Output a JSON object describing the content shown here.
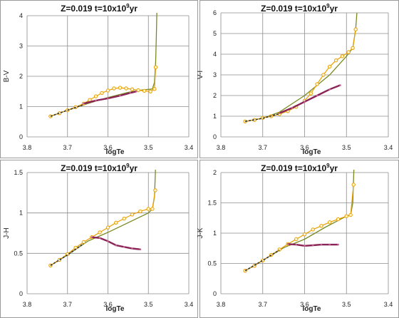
{
  "chart_data": [
    {
      "type": "line",
      "title": "Z=0.019 t=10x10^9yr",
      "xlabel": "logTe",
      "ylabel": "B-V",
      "x_reversed": true,
      "xlim": [
        3.8,
        3.4
      ],
      "ylim": [
        0,
        4
      ],
      "xticks": [
        "3.8",
        "3.7",
        "3.6",
        "3.5",
        "3.4"
      ],
      "yticks": [
        "0",
        "1",
        "2",
        "3",
        "4"
      ],
      "grid": true,
      "series": [
        {
          "color": "#7a8a22",
          "style": "solid",
          "points": [
            [
              3.742,
              0.68
            ],
            [
              3.7,
              0.88
            ],
            [
              3.65,
              1.1
            ],
            [
              3.6,
              1.3
            ],
            [
              3.55,
              1.47
            ],
            [
              3.515,
              1.55
            ],
            [
              3.49,
              1.58
            ],
            [
              3.485,
              1.8
            ],
            [
              3.482,
              2.5
            ],
            [
              3.48,
              3.5
            ],
            [
              3.479,
              4.2
            ]
          ]
        },
        {
          "color": "#e8a000",
          "style": "markers",
          "points": [
            [
              3.742,
              0.68
            ],
            [
              3.72,
              0.78
            ],
            [
              3.7,
              0.88
            ],
            [
              3.68,
              0.98
            ],
            [
              3.66,
              1.1
            ],
            [
              3.645,
              1.22
            ],
            [
              3.63,
              1.34
            ],
            [
              3.615,
              1.45
            ],
            [
              3.6,
              1.53
            ],
            [
              3.585,
              1.6
            ],
            [
              3.57,
              1.62
            ],
            [
              3.555,
              1.6
            ],
            [
              3.54,
              1.57
            ],
            [
              3.525,
              1.54
            ],
            [
              3.51,
              1.52
            ],
            [
              3.495,
              1.5
            ],
            [
              3.485,
              1.58
            ],
            [
              3.482,
              2.3
            ]
          ]
        },
        {
          "color": "#8a2456",
          "style": "thick",
          "points": [
            [
              3.66,
              1.1
            ],
            [
              3.63,
              1.2
            ],
            [
              3.6,
              1.27
            ],
            [
              3.57,
              1.36
            ],
            [
              3.545,
              1.45
            ],
            [
              3.53,
              1.5
            ]
          ]
        },
        {
          "color": "#333333",
          "style": "dashed",
          "points": [
            [
              3.742,
              0.68
            ],
            [
              3.7,
              0.88
            ],
            [
              3.66,
              1.06
            ]
          ]
        }
      ]
    },
    {
      "type": "line",
      "title": "Z=0.019 t=10x10^9yr",
      "xlabel": "logTe",
      "ylabel": "V-I",
      "x_reversed": true,
      "xlim": [
        3.8,
        3.4
      ],
      "ylim": [
        0,
        6
      ],
      "xticks": [
        "3.8",
        "3.7",
        "3.6",
        "3.5",
        "3.4"
      ],
      "yticks": [
        "0",
        "1",
        "2",
        "3",
        "4",
        "5",
        "6"
      ],
      "grid": true,
      "series": [
        {
          "color": "#7a8a22",
          "style": "solid",
          "points": [
            [
              3.742,
              0.75
            ],
            [
              3.7,
              0.9
            ],
            [
              3.66,
              1.2
            ],
            [
              3.6,
              2.0
            ],
            [
              3.54,
              3.0
            ],
            [
              3.5,
              3.9
            ],
            [
              3.485,
              4.3
            ],
            [
              3.478,
              5.2
            ],
            [
              3.475,
              6.0
            ]
          ]
        },
        {
          "color": "#e8a000",
          "style": "markers",
          "points": [
            [
              3.742,
              0.75
            ],
            [
              3.72,
              0.82
            ],
            [
              3.7,
              0.92
            ],
            [
              3.68,
              1.0
            ],
            [
              3.66,
              1.1
            ],
            [
              3.64,
              1.25
            ],
            [
              3.62,
              1.45
            ],
            [
              3.6,
              1.75
            ],
            [
              3.585,
              2.1
            ],
            [
              3.57,
              2.55
            ],
            [
              3.555,
              3.0
            ],
            [
              3.54,
              3.4
            ],
            [
              3.525,
              3.7
            ],
            [
              3.51,
              3.9
            ],
            [
              3.495,
              4.1
            ],
            [
              3.485,
              4.3
            ],
            [
              3.478,
              5.2
            ]
          ]
        },
        {
          "color": "#8a2456",
          "style": "thick",
          "points": [
            [
              3.66,
              1.15
            ],
            [
              3.63,
              1.4
            ],
            [
              3.6,
              1.7
            ],
            [
              3.57,
              2.0
            ],
            [
              3.54,
              2.3
            ],
            [
              3.515,
              2.5
            ]
          ]
        },
        {
          "color": "#333333",
          "style": "dashed",
          "points": [
            [
              3.742,
              0.75
            ],
            [
              3.7,
              0.9
            ],
            [
              3.66,
              1.12
            ]
          ]
        }
      ]
    },
    {
      "type": "line",
      "title": "Z=0.019 t=10x10^9yr",
      "xlabel": "logTe",
      "ylabel": "J-H",
      "x_reversed": true,
      "xlim": [
        3.8,
        3.4
      ],
      "ylim": [
        0,
        1.5
      ],
      "xticks": [
        "3.8",
        "3.7",
        "3.6",
        "3.5",
        "3.4"
      ],
      "yticks": [
        "0",
        "0.5",
        "1",
        "1.5"
      ],
      "grid": true,
      "series": [
        {
          "color": "#7a8a22",
          "style": "solid",
          "points": [
            [
              3.742,
              0.35
            ],
            [
              3.7,
              0.48
            ],
            [
              3.65,
              0.65
            ],
            [
              3.6,
              0.76
            ],
            [
              3.55,
              0.88
            ],
            [
              3.5,
              1.0
            ],
            [
              3.49,
              1.05
            ],
            [
              3.485,
              1.2
            ],
            [
              3.482,
              1.6
            ]
          ]
        },
        {
          "color": "#e8a000",
          "style": "markers",
          "points": [
            [
              3.742,
              0.35
            ],
            [
              3.72,
              0.42
            ],
            [
              3.7,
              0.49
            ],
            [
              3.68,
              0.57
            ],
            [
              3.66,
              0.64
            ],
            [
              3.64,
              0.7
            ],
            [
              3.62,
              0.76
            ],
            [
              3.6,
              0.82
            ],
            [
              3.58,
              0.88
            ],
            [
              3.56,
              0.93
            ],
            [
              3.54,
              0.98
            ],
            [
              3.52,
              1.02
            ],
            [
              3.5,
              1.05
            ],
            [
              3.49,
              1.05
            ],
            [
              3.483,
              1.28
            ]
          ]
        },
        {
          "color": "#8a2456",
          "style": "thick",
          "points": [
            [
              3.64,
              0.7
            ],
            [
              3.62,
              0.69
            ],
            [
              3.6,
              0.65
            ],
            [
              3.58,
              0.6
            ],
            [
              3.56,
              0.58
            ],
            [
              3.54,
              0.56
            ],
            [
              3.52,
              0.55
            ]
          ]
        },
        {
          "color": "#333333",
          "style": "dashed",
          "points": [
            [
              3.742,
              0.35
            ],
            [
              3.7,
              0.48
            ],
            [
              3.66,
              0.62
            ]
          ]
        }
      ]
    },
    {
      "type": "line",
      "title": "Z=0.019 t=10x10^9yr",
      "xlabel": "logTe",
      "ylabel": "J-K",
      "x_reversed": true,
      "xlim": [
        3.8,
        3.4
      ],
      "ylim": [
        0,
        2
      ],
      "xticks": [
        "3.8",
        "3.7",
        "3.6",
        "3.5",
        "3.4"
      ],
      "yticks": [
        "0",
        "0.5",
        "1",
        "1.5",
        "2"
      ],
      "grid": true,
      "series": [
        {
          "color": "#7a8a22",
          "style": "solid",
          "points": [
            [
              3.742,
              0.38
            ],
            [
              3.7,
              0.55
            ],
            [
              3.65,
              0.76
            ],
            [
              3.6,
              0.9
            ],
            [
              3.55,
              1.1
            ],
            [
              3.5,
              1.28
            ],
            [
              3.49,
              1.3
            ],
            [
              3.485,
              1.5
            ],
            [
              3.482,
              2.1
            ]
          ]
        },
        {
          "color": "#e8a000",
          "style": "markers",
          "points": [
            [
              3.742,
              0.38
            ],
            [
              3.72,
              0.46
            ],
            [
              3.7,
              0.55
            ],
            [
              3.68,
              0.64
            ],
            [
              3.66,
              0.73
            ],
            [
              3.64,
              0.82
            ],
            [
              3.62,
              0.9
            ],
            [
              3.6,
              0.98
            ],
            [
              3.58,
              1.06
            ],
            [
              3.56,
              1.12
            ],
            [
              3.54,
              1.18
            ],
            [
              3.52,
              1.23
            ],
            [
              3.5,
              1.28
            ],
            [
              3.49,
              1.3
            ],
            [
              3.483,
              1.8
            ]
          ]
        },
        {
          "color": "#8a2456",
          "style": "thick",
          "points": [
            [
              3.64,
              0.82
            ],
            [
              3.62,
              0.81
            ],
            [
              3.6,
              0.79
            ],
            [
              3.58,
              0.8
            ],
            [
              3.56,
              0.81
            ],
            [
              3.54,
              0.81
            ],
            [
              3.52,
              0.81
            ]
          ]
        },
        {
          "color": "#333333",
          "style": "dashed",
          "points": [
            [
              3.742,
              0.38
            ],
            [
              3.7,
              0.55
            ],
            [
              3.66,
              0.72
            ]
          ]
        }
      ]
    }
  ]
}
